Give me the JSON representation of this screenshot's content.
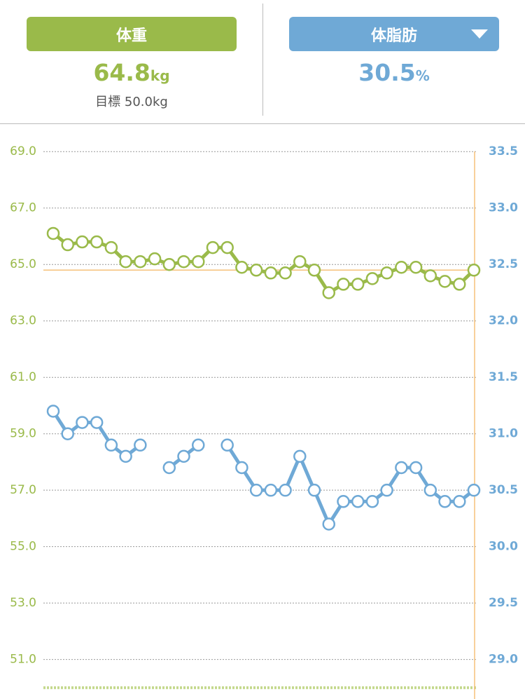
{
  "header": {
    "weight_button": "体重",
    "weight_value": "64.8",
    "weight_unit": "kg",
    "goal": "目標 50.0kg",
    "fat_button": "体脂肪",
    "fat_value": "30.5",
    "fat_unit": "%"
  },
  "chart_data": {
    "type": "line",
    "categories": [
      null,
      null,
      null,
      null,
      null,
      null,
      null,
      null,
      null,
      null,
      null,
      null,
      null,
      null,
      null,
      null,
      null,
      null,
      null,
      null,
      null,
      null,
      null,
      null,
      null,
      null,
      null,
      null,
      null,
      null
    ],
    "series": [
      {
        "name": "体重",
        "color": "#9aba4a",
        "axis": "y",
        "values": [
          66.1,
          65.7,
          65.8,
          65.8,
          65.6,
          65.1,
          65.1,
          65.2,
          65.0,
          65.1,
          65.1,
          65.6,
          65.6,
          64.9,
          64.8,
          64.7,
          64.7,
          65.1,
          64.8,
          64.0,
          64.3,
          64.3,
          64.5,
          64.7,
          64.9,
          64.9,
          64.6,
          64.4,
          64.3,
          64.8
        ]
      },
      {
        "name": "体脂肪",
        "color": "#6fa9d6",
        "axis": "y2",
        "values": [
          31.2,
          31.0,
          31.1,
          31.1,
          30.9,
          30.8,
          30.9,
          null,
          30.7,
          30.8,
          30.9,
          null,
          30.9,
          30.7,
          30.5,
          30.5,
          30.5,
          30.8,
          30.5,
          30.2,
          30.4,
          30.4,
          30.4,
          30.5,
          30.7,
          30.7,
          30.5,
          30.4,
          30.4,
          30.5
        ]
      }
    ],
    "target_line": 50.0,
    "ylim": [
      49.6,
      70.0
    ],
    "yticks": [
      {
        "value": 69,
        "label": "69.0"
      },
      {
        "value": 67,
        "label": "67.0"
      },
      {
        "value": 65,
        "label": "65.0"
      },
      {
        "value": 63,
        "label": "63.0"
      },
      {
        "value": 61,
        "label": "61.0"
      },
      {
        "value": 59,
        "label": "59.0"
      },
      {
        "value": 57,
        "label": "57.0"
      },
      {
        "value": 55,
        "label": "55.0"
      },
      {
        "value": 53,
        "label": "53.0"
      },
      {
        "value": 51,
        "label": "51.0"
      }
    ],
    "y2lim": [
      28.65,
      33.75
    ],
    "y2ticks": [
      33.5,
      {
        "value": 33,
        "label": "33.0"
      },
      32.5,
      {
        "value": 32,
        "label": "32.0"
      },
      31.5,
      {
        "value": 31,
        "label": "31.0"
      },
      30.5,
      {
        "value": 30,
        "label": "30.0"
      },
      29.5,
      {
        "value": 29,
        "label": "29.0"
      }
    ],
    "grid": true
  }
}
